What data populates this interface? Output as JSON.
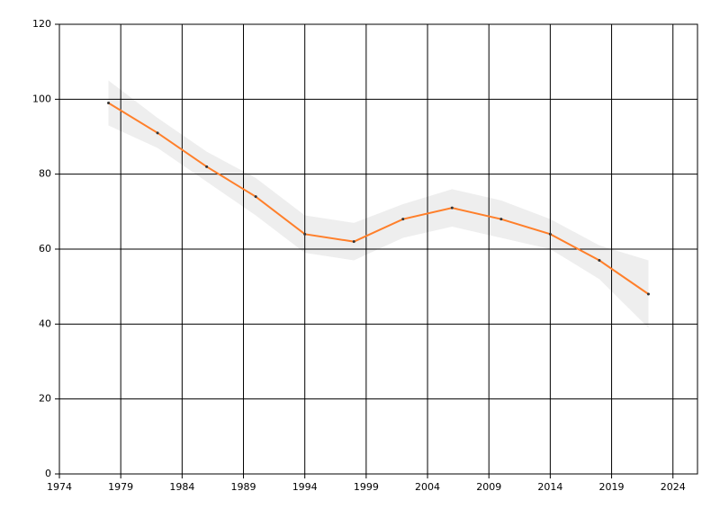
{
  "chart_data": {
    "type": "line",
    "x": [
      1978,
      1982,
      1986,
      1990,
      1994,
      1998,
      2002,
      2006,
      2010,
      2014,
      2018,
      2022
    ],
    "values": [
      99,
      91,
      82,
      74,
      64,
      62,
      68,
      71,
      68,
      64,
      57,
      48
    ],
    "upper": [
      105,
      95,
      86,
      79,
      69,
      67,
      72,
      76,
      73,
      68,
      61,
      57
    ],
    "lower": [
      93,
      87,
      78,
      69,
      59,
      57,
      63,
      66,
      63,
      60,
      52,
      39
    ],
    "color": "#ff7f2a",
    "band_color": "#eeeeee",
    "marker_color": "#333333",
    "xlim": [
      1974,
      2026
    ],
    "xticks": [
      1974,
      1979,
      1984,
      1989,
      1994,
      1999,
      2004,
      2009,
      2014,
      2019,
      2024
    ],
    "ylim": [
      0,
      120
    ],
    "yticks": [
      0,
      20,
      40,
      60,
      80,
      100,
      120
    ],
    "grid": true
  }
}
